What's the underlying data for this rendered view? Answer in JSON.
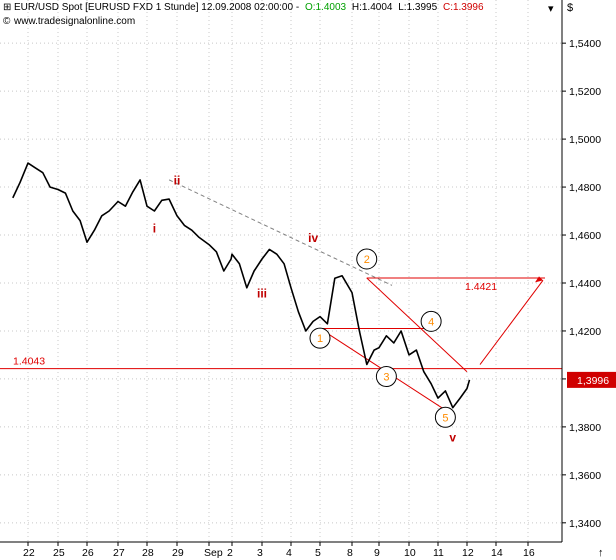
{
  "header": {
    "title": "EUR/USD Spot [EURUSD FXD  1 Stunde] 12.09.2008 02:00:00 -",
    "open": "O:1.4003",
    "high": "H:1.4004",
    "low": "L:1.3995",
    "close": "C:1.3996",
    "website": "www.tradesignalonline.com",
    "currency_symbol": "$",
    "colors": {
      "open": "#00a000",
      "close": "#d00000",
      "text": "#000000"
    }
  },
  "chart_data": {
    "type": "line",
    "title": "",
    "xlabel": "",
    "ylabel": "",
    "ylim": [
      1.332,
      1.558
    ],
    "y_ticks": [
      "1,5400",
      "1,5200",
      "1,5000",
      "1,4800",
      "1,4600",
      "1,4400",
      "1,4200",
      "1,4000",
      "1,3800",
      "1,3600",
      "1,3400"
    ],
    "y_tick_values": [
      1.54,
      1.52,
      1.5,
      1.48,
      1.46,
      1.44,
      1.42,
      1.4,
      1.38,
      1.36,
      1.34
    ],
    "x_ticks": [
      "22",
      "25",
      "26",
      "27",
      "28",
      "29",
      "Sep",
      "2",
      "3",
      "4",
      "5",
      "8",
      "9",
      "10",
      "11",
      "12",
      "14",
      "16"
    ],
    "series": [
      {
        "x": [
          "2008-08-21 12:00",
          "2008-08-21 18:00",
          "2008-08-22 00:00",
          "2008-08-22 06:00",
          "2008-08-22 12:00",
          "2008-08-22 18:00",
          "2008-08-25 00:00",
          "2008-08-25 06:00",
          "2008-08-25 12:00",
          "2008-08-25 18:00",
          "2008-08-26 00:00",
          "2008-08-26 06:00",
          "2008-08-26 12:00",
          "2008-08-26 18:00",
          "2008-08-27 00:00",
          "2008-08-27 06:00",
          "2008-08-27 12:00",
          "2008-08-27 18:00",
          "2008-08-28 00:00",
          "2008-08-28 06:00",
          "2008-08-28 12:00",
          "2008-08-28 18:00",
          "2008-08-29 00:00",
          "2008-08-29 06:00",
          "2008-08-29 12:00",
          "2008-08-29 18:00",
          "2008-09-01 00:00",
          "2008-09-01 06:00",
          "2008-09-01 12:00",
          "2008-09-01 18:00",
          "2008-09-02 00:00",
          "2008-09-02 06:00",
          "2008-09-02 12:00",
          "2008-09-02 18:00",
          "2008-09-03 00:00",
          "2008-09-03 06:00",
          "2008-09-03 12:00",
          "2008-09-03 18:00",
          "2008-09-04 00:00",
          "2008-09-04 06:00",
          "2008-09-04 12:00",
          "2008-09-04 18:00",
          "2008-09-05 00:00",
          "2008-09-05 06:00",
          "2008-09-05 12:00",
          "2008-09-05 18:00",
          "2008-09-08 00:00",
          "2008-09-08 06:00",
          "2008-09-08 12:00",
          "2008-09-08 18:00",
          "2008-09-09 00:00",
          "2008-09-09 06:00",
          "2008-09-09 12:00",
          "2008-09-09 18:00",
          "2008-09-10 00:00",
          "2008-09-10 06:00",
          "2008-09-10 12:00",
          "2008-09-10 18:00",
          "2008-09-11 00:00",
          "2008-09-11 06:00",
          "2008-09-11 12:00",
          "2008-09-11 18:00",
          "2008-09-12 00:00",
          "2008-09-12 02:00"
        ],
        "values": [
          1.4755,
          1.482,
          1.49,
          1.488,
          1.486,
          1.48,
          1.479,
          1.4775,
          1.47,
          1.466,
          1.457,
          1.462,
          1.468,
          1.47,
          1.474,
          1.472,
          1.478,
          1.483,
          1.472,
          1.47,
          1.4745,
          1.475,
          1.468,
          1.464,
          1.462,
          1.459,
          1.456,
          1.453,
          1.445,
          1.45,
          1.452,
          1.448,
          1.438,
          1.445,
          1.45,
          1.454,
          1.452,
          1.448,
          1.438,
          1.428,
          1.42,
          1.424,
          1.426,
          1.423,
          1.442,
          1.443,
          1.436,
          1.42,
          1.406,
          1.412,
          1.413,
          1.418,
          1.415,
          1.42,
          1.41,
          1.412,
          1.403,
          1.398,
          1.392,
          1.395,
          1.388,
          1.392,
          1.396,
          1.3996
        ]
      }
    ],
    "last_price_label": "1,3996",
    "horizontal_levels": [
      {
        "value": 1.4043,
        "label": "1.4043"
      },
      {
        "value": 1.4421,
        "label": "1.4421"
      }
    ],
    "wave_labels_roman": [
      {
        "label": "i",
        "x": "2008-08-28 06:00",
        "y": 1.461
      },
      {
        "label": "ii",
        "x": "2008-08-29 00:00",
        "y": 1.481
      },
      {
        "label": "iii",
        "x": "2008-09-03 00:00",
        "y": 1.434
      },
      {
        "label": "iv",
        "x": "2008-09-04 18:00",
        "y": 1.457
      },
      {
        "label": "v",
        "x": "2008-09-11 12:00",
        "y": 1.374
      }
    ],
    "wave_labels_circled": [
      {
        "label": "1",
        "x": "2008-09-05 00:00",
        "y": 1.417
      },
      {
        "label": "2",
        "x": "2008-09-08 12:00",
        "y": 1.45
      },
      {
        "label": "3",
        "x": "2008-09-09 06:00",
        "y": 1.401
      },
      {
        "label": "4",
        "x": "2008-09-10 18:00",
        "y": 1.424
      },
      {
        "label": "5",
        "x": "2008-09-11 06:00",
        "y": 1.384
      }
    ],
    "colors": {
      "price": "#000000",
      "level": "#e00000",
      "wave_roman": "#c00000",
      "wave_circled": "#ff8c00",
      "grid": "#c8c8c8",
      "trend_dash": "#808080"
    }
  }
}
